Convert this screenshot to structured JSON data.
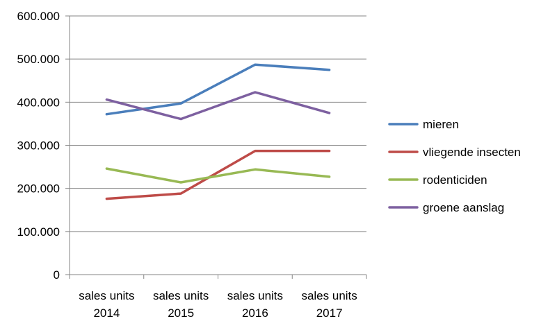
{
  "chart_data": {
    "type": "line",
    "categories": [
      [
        "sales units",
        "2014"
      ],
      [
        "sales units",
        "2015"
      ],
      [
        "sales units",
        "2016"
      ],
      [
        "sales units",
        "2017"
      ]
    ],
    "series": [
      {
        "name": "mieren",
        "values": [
          372000,
          397000,
          487000,
          475000
        ],
        "color": "#4a7ebb"
      },
      {
        "name": "vliegende insecten",
        "values": [
          176000,
          188000,
          287000,
          287000
        ],
        "color": "#be4b48"
      },
      {
        "name": "rodenticiden",
        "values": [
          246000,
          214000,
          244000,
          227000
        ],
        "color": "#98b954"
      },
      {
        "name": "groene aanslag",
        "values": [
          406000,
          361000,
          423000,
          375000
        ],
        "color": "#7d60a0"
      }
    ],
    "yticks": [
      "0",
      "100.000",
      "200.000",
      "300.000",
      "400.000",
      "500.000",
      "600.000"
    ],
    "ylim": [
      0,
      600000
    ],
    "grid": true,
    "legend_position": "right",
    "title": "",
    "xlabel": "",
    "ylabel": ""
  }
}
